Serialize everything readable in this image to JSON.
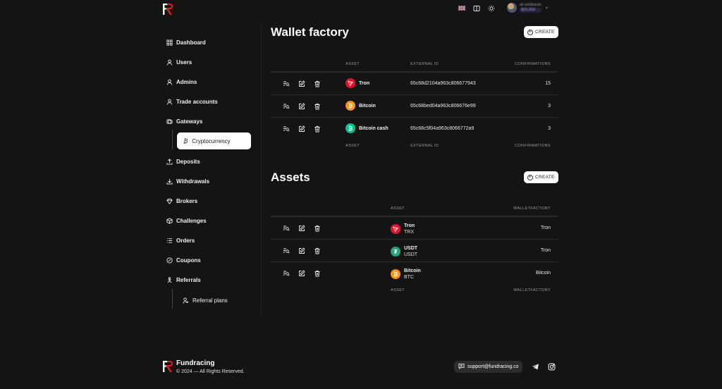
{
  "header": {
    "brand_mark": "FR",
    "user_name": "ali ashikaran",
    "user_balance": "$15,333"
  },
  "sidebar": {
    "items": [
      {
        "label": "Dashboard",
        "icon": "grid-icon"
      },
      {
        "label": "Users",
        "icon": "user-icon"
      },
      {
        "label": "Admins",
        "icon": "user-icon"
      },
      {
        "label": "Trade accounts",
        "icon": "user-icon"
      },
      {
        "label": "Gateways",
        "icon": "gateway-icon"
      },
      {
        "label": "Cryptocurrency",
        "icon": "bitcoin-icon",
        "active": true
      },
      {
        "label": "Deposits",
        "icon": "upload-icon"
      },
      {
        "label": "Withdrawals",
        "icon": "download-icon"
      },
      {
        "label": "Brokers",
        "icon": "diamond-icon"
      },
      {
        "label": "Challenges",
        "icon": "cube-icon"
      },
      {
        "label": "Orders",
        "icon": "list-icon"
      },
      {
        "label": "Coupons",
        "icon": "coupon-icon"
      },
      {
        "label": "Referrals",
        "icon": "referral-icon"
      },
      {
        "label": "Referral plans",
        "icon": "user-plus-icon"
      }
    ]
  },
  "wallet_factory": {
    "title": "Wallet factory",
    "create_label": "CREATE",
    "columns": [
      "ASSET",
      "EXTERNAL ID",
      "CONFIRMATIONS"
    ],
    "rows": [
      {
        "asset": "Tron",
        "external_id": "65c68d2104a963c806677943",
        "confirmations": "15",
        "color": "#e8112d"
      },
      {
        "asset": "Bitcoin",
        "external_id": "65c68bed04a963c806676e99",
        "confirmations": "3",
        "color": "#f7931a"
      },
      {
        "asset": "Bitcoin cash",
        "external_id": "65c68c5f04a963c8066772a9",
        "confirmations": "3",
        "color": "#0ac18e"
      }
    ]
  },
  "assets": {
    "title": "Assets",
    "create_label": "CREATE",
    "columns": [
      "ASSET",
      "WALLETFACTORY"
    ],
    "rows": [
      {
        "name": "Tron",
        "symbol": "TRX",
        "factory": "Tron",
        "color": "#e8112d"
      },
      {
        "name": "USDT",
        "symbol": "USDT",
        "factory": "Tron",
        "color": "#26a17b"
      },
      {
        "name": "Bitcoin",
        "symbol": "BTC",
        "factory": "Bitcoin",
        "color": "#f7931a"
      }
    ]
  },
  "footer": {
    "brand": "Fundracing",
    "copyright": "© 2024 — All Rights Reserved.",
    "support_email": "support@fundracing.co"
  }
}
